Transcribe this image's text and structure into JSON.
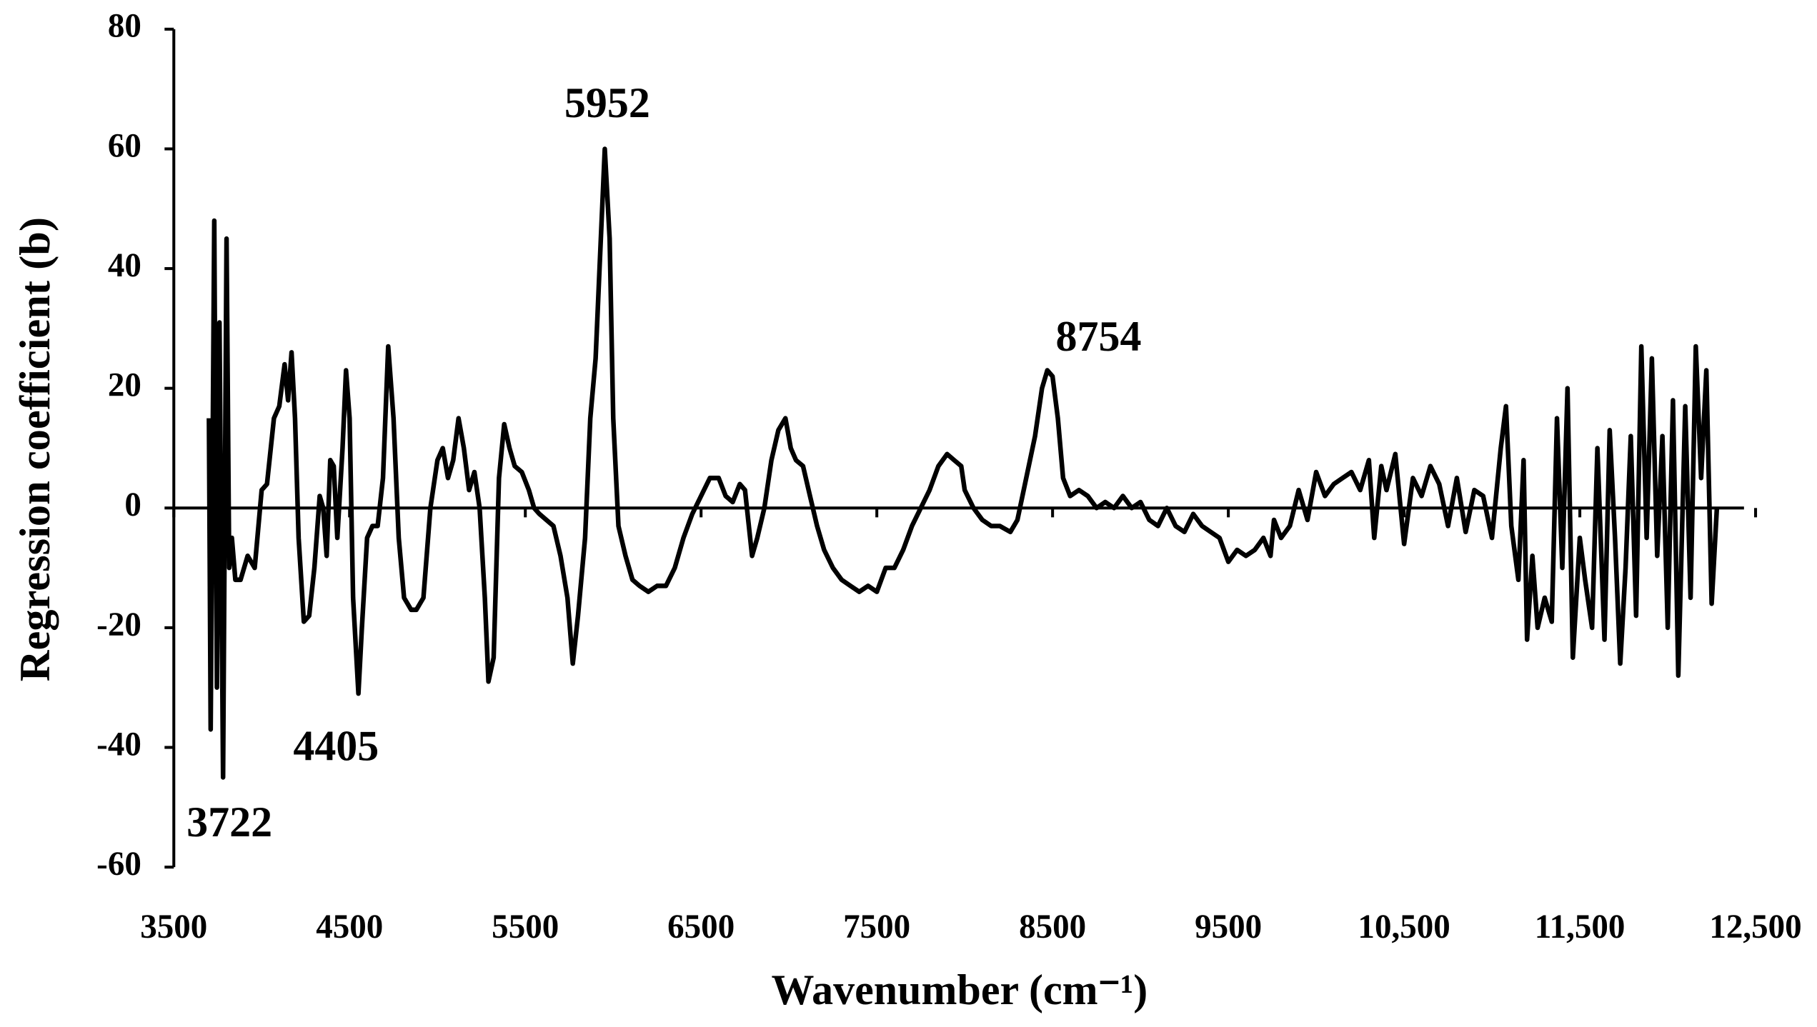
{
  "chart_data": {
    "type": "line",
    "x_label": "Wavenumber (cm⁻¹)",
    "y_label": "Regression coefficient (b)",
    "annotations": [
      "5952",
      "8754",
      "4405",
      "3722"
    ],
    "xlim": [
      3500,
      12500
    ],
    "xticks": [
      3500,
      4500,
      5500,
      6500,
      7500,
      8500,
      9500,
      {
        "value": 10500,
        "label": "10,500"
      },
      {
        "value": 11500,
        "label": "11,500"
      },
      {
        "value": 12500,
        "label": "12,500"
      }
    ],
    "ylim": [
      -60,
      80
    ],
    "yticks": [
      -60,
      -40,
      -20,
      0,
      20,
      40,
      60,
      80
    ],
    "grid": false,
    "series": [
      {
        "color": "#000000",
        "x": [
          3700,
          3710,
          3730,
          3745,
          3760,
          3780,
          3800,
          3815,
          3830,
          3850,
          3880,
          3920,
          3960,
          4000,
          4030,
          4070,
          4100,
          4130,
          4150,
          4170,
          4190,
          4210,
          4240,
          4270,
          4300,
          4330,
          4350,
          4370,
          4390,
          4410,
          4430,
          4460,
          4480,
          4500,
          4520,
          4550,
          4570,
          4600,
          4630,
          4660,
          4690,
          4720,
          4750,
          4780,
          4810,
          4850,
          4880,
          4920,
          4960,
          5000,
          5030,
          5060,
          5090,
          5120,
          5150,
          5180,
          5210,
          5240,
          5270,
          5290,
          5320,
          5350,
          5380,
          5410,
          5440,
          5480,
          5520,
          5550,
          5580,
          5620,
          5660,
          5700,
          5740,
          5770,
          5800,
          5840,
          5870,
          5900,
          5930,
          5952,
          5980,
          6000,
          6030,
          6070,
          6110,
          6150,
          6200,
          6250,
          6300,
          6350,
          6400,
          6450,
          6500,
          6550,
          6600,
          6640,
          6680,
          6720,
          6750,
          6790,
          6820,
          6860,
          6900,
          6940,
          6980,
          7010,
          7040,
          7080,
          7120,
          7160,
          7200,
          7250,
          7300,
          7350,
          7400,
          7450,
          7500,
          7550,
          7600,
          7650,
          7700,
          7750,
          7800,
          7850,
          7900,
          7940,
          7980,
          8000,
          8050,
          8100,
          8150,
          8200,
          8260,
          8300,
          8350,
          8400,
          8440,
          8470,
          8500,
          8530,
          8560,
          8600,
          8650,
          8700,
          8750,
          8800,
          8850,
          8900,
          8950,
          9000,
          9050,
          9100,
          9150,
          9200,
          9250,
          9300,
          9350,
          9400,
          9450,
          9500,
          9550,
          9600,
          9650,
          9700,
          9740,
          9760,
          9800,
          9850,
          9900,
          9950,
          10000,
          10050,
          10100,
          10150,
          10200,
          10250,
          10300,
          10330,
          10370,
          10400,
          10450,
          10500,
          10550,
          10600,
          10650,
          10700,
          10750,
          10800,
          10850,
          10900,
          10950,
          11000,
          11050,
          11080,
          11110,
          11150,
          11180,
          11200,
          11230,
          11260,
          11300,
          11340,
          11370,
          11400,
          11430,
          11460,
          11500,
          11530,
          11570,
          11600,
          11640,
          11670,
          11700,
          11730,
          11760,
          11790,
          11820,
          11850,
          11880,
          11910,
          11940,
          11970,
          12000,
          12030,
          12060,
          12100,
          12130,
          12160,
          12190,
          12220,
          12250,
          12280
        ],
        "values": [
          15,
          -37,
          48,
          -30,
          31,
          -45,
          45,
          -10,
          -5,
          -12,
          -12,
          -8,
          -10,
          3,
          4,
          15,
          17,
          24,
          18,
          26,
          15,
          -5,
          -19,
          -18,
          -10,
          2,
          0,
          -8,
          8,
          7,
          -5,
          10,
          23,
          15,
          -15,
          -31,
          -20,
          -5,
          -3,
          -3,
          5,
          27,
          15,
          -5,
          -15,
          -17,
          -17,
          -15,
          0,
          8,
          10,
          5,
          8,
          15,
          10,
          3,
          6,
          0,
          -15,
          -29,
          -25,
          5,
          14,
          10,
          7,
          6,
          3,
          0,
          -1,
          -2,
          -3,
          -8,
          -15,
          -26,
          -18,
          -5,
          15,
          25,
          45,
          60,
          45,
          15,
          -3,
          -8,
          -12,
          -13,
          -14,
          -13,
          -13,
          -10,
          -5,
          -1,
          2,
          5,
          5,
          2,
          1,
          4,
          3,
          -8,
          -5,
          0,
          8,
          13,
          15,
          10,
          8,
          7,
          2,
          -3,
          -7,
          -10,
          -12,
          -13,
          -14,
          -13,
          -14,
          -10,
          -10,
          -7,
          -3,
          0,
          3,
          7,
          9,
          8,
          7,
          3,
          0,
          -2,
          -3,
          -3,
          -4,
          -2,
          5,
          12,
          20,
          23,
          22,
          15,
          5,
          2,
          3,
          2,
          0,
          1,
          0,
          2,
          0,
          1,
          -2,
          -3,
          0,
          -3,
          -4,
          -1,
          -3,
          -4,
          -5,
          -9,
          -7,
          -8,
          -7,
          -5,
          -8,
          -2,
          -5,
          -3,
          3,
          -2,
          6,
          2,
          4,
          5,
          6,
          3,
          8,
          -5,
          7,
          3,
          9,
          -6,
          5,
          2,
          7,
          4,
          -3,
          5,
          -4,
          3,
          2,
          -5,
          10,
          17,
          -3,
          -12,
          8,
          -22,
          -8,
          -20,
          -15,
          -19,
          15,
          -10,
          20,
          -25,
          -5,
          -12,
          -20,
          10,
          -22,
          13,
          -5,
          -26,
          -10,
          12,
          -18,
          27,
          -5,
          25,
          -8,
          12,
          -20,
          18,
          -28,
          17,
          -15,
          27,
          5,
          23,
          -16,
          0
        ]
      }
    ]
  }
}
